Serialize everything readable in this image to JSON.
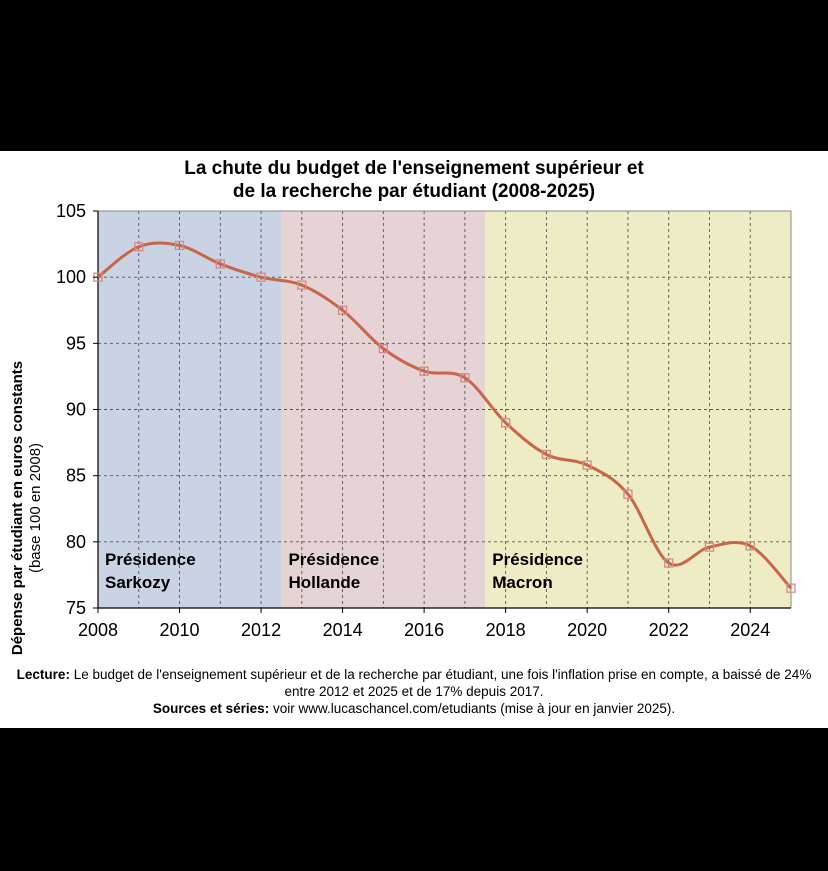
{
  "title_lines": [
    "La chute du budget de l'enseignement supérieur et",
    "de la recherche par étudiant (2008-2025)"
  ],
  "footer": {
    "lecture_label": "Lecture:",
    "lecture_text": " Le budget de l'enseignement supérieur et de la recherche par étudiant, une fois l'inflation prise en compte, a baissé de 24% entre 2012 et 2025 et de 17% depuis 2017.",
    "sources_label": "Sources et séries:",
    "sources_text": " voir www.lucaschancel.com/etudiants (mise à jour en janvier 2025)."
  },
  "chart_data": {
    "type": "line",
    "title": "La chute du budget de l'enseignement supérieur et de la recherche par étudiant (2008-2025)",
    "ylabel": "Dépense par étudiant en euros constants",
    "ylabel_sub": "(base 100 en 2008)",
    "xlabel": "",
    "xlim": [
      2008,
      2025
    ],
    "ylim": [
      75,
      105
    ],
    "x_ticks": [
      2008,
      2010,
      2012,
      2014,
      2016,
      2018,
      2020,
      2022,
      2024
    ],
    "y_ticks": [
      75,
      80,
      85,
      90,
      95,
      100,
      105
    ],
    "grid": true,
    "legend": "none",
    "x": [
      2008,
      2009,
      2010,
      2011,
      2012,
      2013,
      2014,
      2015,
      2016,
      2017,
      2018,
      2019,
      2020,
      2021,
      2022,
      2023,
      2024,
      2025
    ],
    "series": [
      {
        "values": [
          100,
          102.3,
          102.4,
          101,
          100,
          99.4,
          97.5,
          94.6,
          92.9,
          92.4,
          89,
          86.6,
          85.8,
          83.6,
          78.4,
          79.6,
          79.7,
          76.5
        ],
        "color": "#c8664a",
        "marker": "square"
      }
    ],
    "regions": [
      {
        "label_lines": [
          "Présidence",
          "Sarkozy"
        ],
        "start": 2008,
        "end": 2012.5,
        "color": "#c9d3e3"
      },
      {
        "label_lines": [
          "Présidence",
          "Hollande"
        ],
        "start": 2012.5,
        "end": 2017.5,
        "color": "#e6d3d6"
      },
      {
        "label_lines": [
          "Présidence",
          "Macron"
        ],
        "start": 2017.5,
        "end": 2025,
        "color": "#eeecc4"
      }
    ]
  }
}
